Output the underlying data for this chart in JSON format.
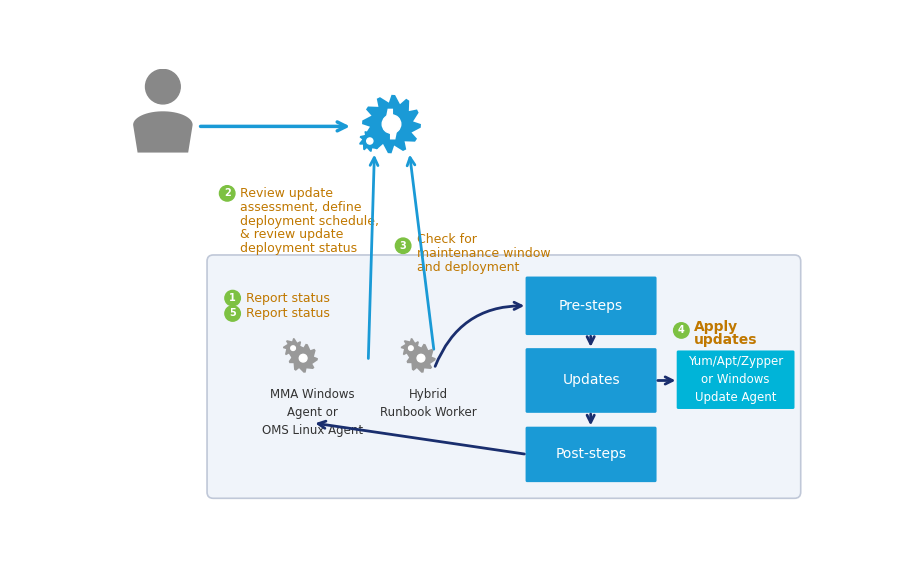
{
  "bg_color": "#ffffff",
  "inner_bg": "#f0f4fa",
  "box_color_blue": "#1a9ad6",
  "box_color_cyan": "#00b4d8",
  "gear_color_blue": "#1a9ad6",
  "gear_color_gray": "#999999",
  "person_color": "#888888",
  "arrow_dark": "#1a2e6e",
  "arrow_blue": "#1a9ad6",
  "green_circle": "#7DC142",
  "text_orange": "#c07800",
  "text_dark": "#333333",
  "text_white": "#ffffff",
  "label2_lines": [
    "Review update",
    "assessment, define",
    "deployment schedule,",
    "& review update",
    "deployment status"
  ],
  "label3_lines": [
    "Check for",
    "maintenance window",
    "and deployment"
  ],
  "label1_text": "Report status",
  "label5_text": "Report status",
  "label4_line1": "Apply",
  "label4_line2": "updates",
  "mma_label": "MMA Windows\nAgent or\nOMS Linux Agent",
  "hybrid_label": "Hybrid\nRunbook Worker",
  "presteps_label": "Pre-steps",
  "updates_label": "Updates",
  "poststeps_label": "Post-steps",
  "yum_label": "Yum/Apt/Zypper\nor Windows\nUpdate Agent"
}
